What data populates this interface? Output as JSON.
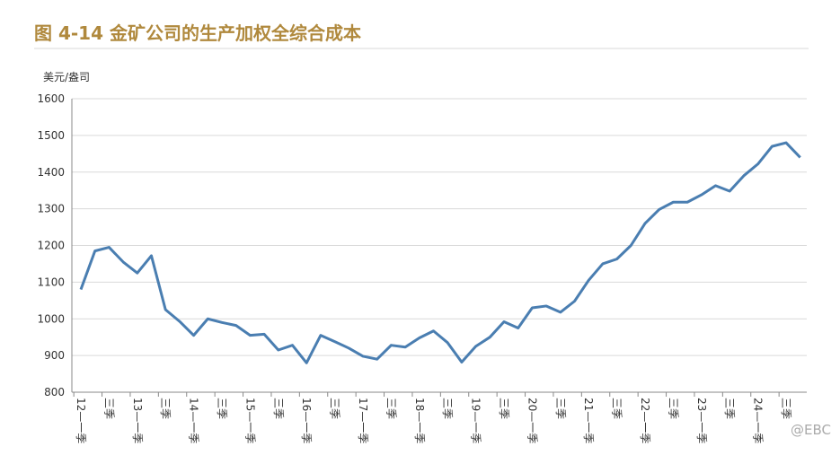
{
  "chart_data": {
    "type": "line",
    "title": "图 4-14  金矿公司的生产加权全综合成本",
    "y_label": "美元/盎司",
    "watermark": "@EBC",
    "categories": [
      "12—一季",
      null,
      "三季",
      null,
      "13—一季",
      null,
      "三季",
      null,
      "14—一季",
      null,
      "三季",
      null,
      "15—一季",
      null,
      "三季",
      null,
      "16—一季",
      null,
      "三季",
      null,
      "17—一季",
      null,
      "三季",
      null,
      "18—一季",
      null,
      "三季",
      null,
      "19—一季",
      null,
      "三季",
      null,
      "20—一季",
      null,
      "三季",
      null,
      "21—一季",
      null,
      "三季",
      null,
      "22—一季",
      null,
      "三季",
      null,
      "23—一季",
      null,
      "三季",
      null,
      "24—一季",
      null,
      "三季",
      null
    ],
    "values": [
      1080,
      1185,
      1195,
      1155,
      1125,
      1172,
      1025,
      993,
      955,
      1000,
      990,
      982,
      955,
      958,
      915,
      928,
      880,
      955,
      938,
      920,
      898,
      890,
      928,
      923,
      948,
      967,
      935,
      882,
      925,
      950,
      992,
      975,
      1030,
      1035,
      1018,
      1048,
      1105,
      1150,
      1163,
      1200,
      1260,
      1298,
      1318,
      1318,
      1338,
      1363,
      1348,
      1390,
      1422,
      1470,
      1480,
      1440
    ],
    "color": "#4a7eb1",
    "ylim": [
      800,
      1600
    ],
    "yticks": [
      800,
      900,
      1000,
      1100,
      1200,
      1300,
      1400,
      1500,
      1600
    ],
    "grid": true
  }
}
